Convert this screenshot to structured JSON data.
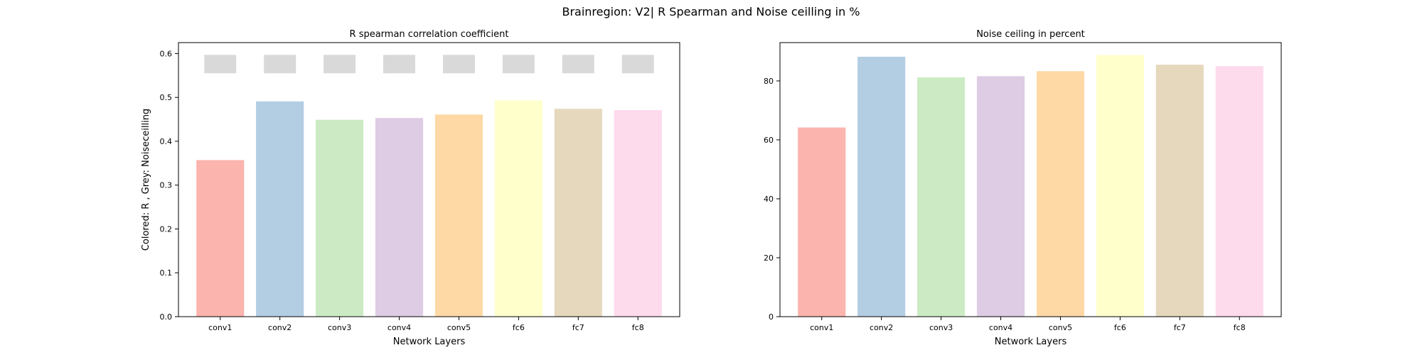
{
  "figure": {
    "suptitle": "Brainregion: V2| R Spearman and Noise ceilling in %"
  },
  "chart_data": [
    {
      "type": "bar",
      "title": "R spearman correlation coefficient",
      "xlabel": "Network Layers",
      "ylabel": "Colored: R , Grey: Noiseceilling",
      "categories": [
        "conv1",
        "conv2",
        "conv3",
        "conv4",
        "conv5",
        "fc6",
        "fc7",
        "fc8"
      ],
      "series": [
        {
          "values": [
            0.357,
            0.491,
            0.449,
            0.453,
            0.461,
            0.493,
            0.474,
            0.471
          ],
          "colors": [
            "#fbb4ae",
            "#b3cde3",
            "#ccebc5",
            "#decbe4",
            "#fed9a6",
            "#ffffcc",
            "#e5d8bd",
            "#fddaec"
          ]
        },
        {
          "kind": "noise-ceiling-range",
          "lower": [
            0.555,
            0.555,
            0.555,
            0.555,
            0.555,
            0.555,
            0.555,
            0.555
          ],
          "upper": [
            0.597,
            0.597,
            0.597,
            0.597,
            0.597,
            0.597,
            0.597,
            0.597
          ],
          "color": "#d9d9d9"
        }
      ],
      "ylim": [
        0,
        0.625
      ],
      "yticks": [
        0.0,
        0.1,
        0.2,
        0.3,
        0.4,
        0.5,
        0.6
      ],
      "ytick_labels": [
        "0.0",
        "0.1",
        "0.2",
        "0.3",
        "0.4",
        "0.5",
        "0.6"
      ],
      "grid": false
    },
    {
      "type": "bar",
      "title": "Noise ceiling in percent",
      "xlabel": "Network Layers",
      "ylabel": "",
      "categories": [
        "conv1",
        "conv2",
        "conv3",
        "conv4",
        "conv5",
        "fc6",
        "fc7",
        "fc8"
      ],
      "series": [
        {
          "values": [
            64.2,
            88.2,
            81.2,
            81.6,
            83.3,
            88.8,
            85.5,
            85.0
          ],
          "colors": [
            "#fbb4ae",
            "#b3cde3",
            "#ccebc5",
            "#decbe4",
            "#fed9a6",
            "#ffffcc",
            "#e5d8bd",
            "#fddaec"
          ]
        }
      ],
      "ylim": [
        0,
        93
      ],
      "yticks": [
        0,
        20,
        40,
        60,
        80
      ],
      "ytick_labels": [
        "0",
        "20",
        "40",
        "60",
        "80"
      ],
      "grid": false
    }
  ]
}
